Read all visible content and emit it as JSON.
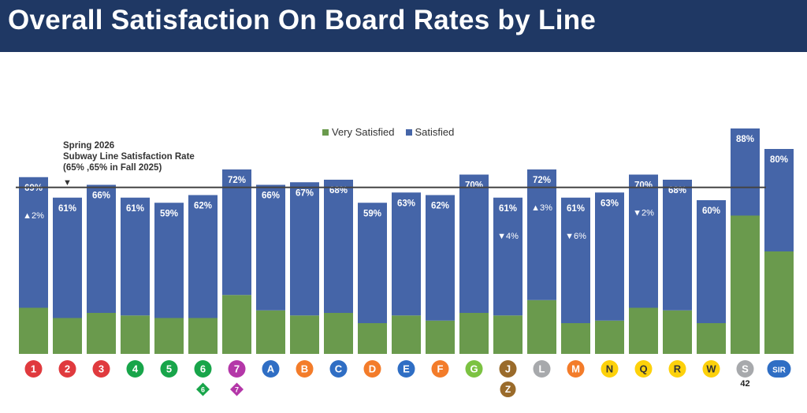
{
  "header": {
    "title": "Overall Satisfaction On Board Rates by Line"
  },
  "legend": {
    "very_satisfied": "Very Satisfied",
    "satisfied": "Satisfied"
  },
  "note": {
    "line1": "Spring 2026",
    "line2": "Subway Line Satisfaction Rate",
    "line3": "(65% ,65% in Fall 2025)",
    "arrow": "▼"
  },
  "colors": {
    "title_bg": "#1f3864",
    "satisfied": "#4565a8",
    "very_satisfied": "#6a9a4d",
    "reference_line": "#444444"
  },
  "chart_data": {
    "type": "bar",
    "stacked": true,
    "categories": [
      "1",
      "2",
      "3",
      "4",
      "5",
      "6",
      "7",
      "A",
      "B",
      "C",
      "D",
      "E",
      "F",
      "G",
      "J",
      "L",
      "M",
      "N",
      "Q",
      "R",
      "W",
      "S",
      "SIR"
    ],
    "series": [
      {
        "name": "Very Satisfied",
        "values": [
          18,
          14,
          16,
          15,
          14,
          14,
          23,
          17,
          15,
          16,
          12,
          15,
          13,
          16,
          15,
          21,
          12,
          13,
          18,
          17,
          12,
          54,
          40
        ]
      },
      {
        "name": "Satisfied",
        "values": [
          51,
          47,
          50,
          46,
          45,
          48,
          49,
          49,
          52,
          52,
          47,
          48,
          49,
          54,
          46,
          51,
          49,
          50,
          52,
          51,
          48,
          34,
          40
        ]
      }
    ],
    "totals": [
      "69%",
      "61%",
      "66%",
      "61%",
      "59%",
      "62%",
      "72%",
      "66%",
      "67%",
      "68%",
      "59%",
      "63%",
      "62%",
      "70%",
      "61%",
      "72%",
      "61%",
      "63%",
      "70%",
      "68%",
      "60%",
      "88%",
      "80%"
    ],
    "changes": [
      {
        "index": 0,
        "label": "▲2%"
      },
      {
        "index": 14,
        "label": "▼4%"
      },
      {
        "index": 15,
        "label": "▲3%"
      },
      {
        "index": 16,
        "label": "▼6%"
      },
      {
        "index": 18,
        "label": "▼2%"
      }
    ],
    "reference_value": 65,
    "ylim": [
      0,
      100
    ],
    "line_badges": [
      {
        "label": "1",
        "color": "#e03a3e",
        "text_color": "#ffffff"
      },
      {
        "label": "2",
        "color": "#e03a3e",
        "text_color": "#ffffff"
      },
      {
        "label": "3",
        "color": "#e03a3e",
        "text_color": "#ffffff"
      },
      {
        "label": "4",
        "color": "#18a54a",
        "text_color": "#ffffff"
      },
      {
        "label": "5",
        "color": "#18a54a",
        "text_color": "#ffffff"
      },
      {
        "label": "6",
        "color": "#18a54a",
        "text_color": "#ffffff",
        "extra": "6",
        "extra_shape": "diamond"
      },
      {
        "label": "7",
        "color": "#b437a8",
        "text_color": "#ffffff",
        "extra": "7",
        "extra_shape": "diamond"
      },
      {
        "label": "A",
        "color": "#2f6ec4",
        "text_color": "#ffffff"
      },
      {
        "label": "B",
        "color": "#f37c2a",
        "text_color": "#ffffff"
      },
      {
        "label": "C",
        "color": "#2f6ec4",
        "text_color": "#ffffff"
      },
      {
        "label": "D",
        "color": "#f37c2a",
        "text_color": "#ffffff"
      },
      {
        "label": "E",
        "color": "#2f6ec4",
        "text_color": "#ffffff"
      },
      {
        "label": "F",
        "color": "#f37c2a",
        "text_color": "#ffffff"
      },
      {
        "label": "G",
        "color": "#7cc242",
        "text_color": "#ffffff"
      },
      {
        "label": "J",
        "color": "#9a6b2b",
        "text_color": "#ffffff",
        "extra": "Z",
        "extra_shape": "circle"
      },
      {
        "label": "L",
        "color": "#a7a9ac",
        "text_color": "#ffffff"
      },
      {
        "label": "M",
        "color": "#f37c2a",
        "text_color": "#ffffff"
      },
      {
        "label": "N",
        "color": "#fdd10b",
        "text_color": "#333333"
      },
      {
        "label": "Q",
        "color": "#fdd10b",
        "text_color": "#333333"
      },
      {
        "label": "R",
        "color": "#fdd10b",
        "text_color": "#333333"
      },
      {
        "label": "W",
        "color": "#fdd10b",
        "text_color": "#333333"
      },
      {
        "label": "S",
        "color": "#a7a9ac",
        "text_color": "#ffffff",
        "extra": "42",
        "extra_shape": "text"
      },
      {
        "label": "SIR",
        "color": "#2f6ec4",
        "text_color": "#ffffff"
      }
    ]
  }
}
